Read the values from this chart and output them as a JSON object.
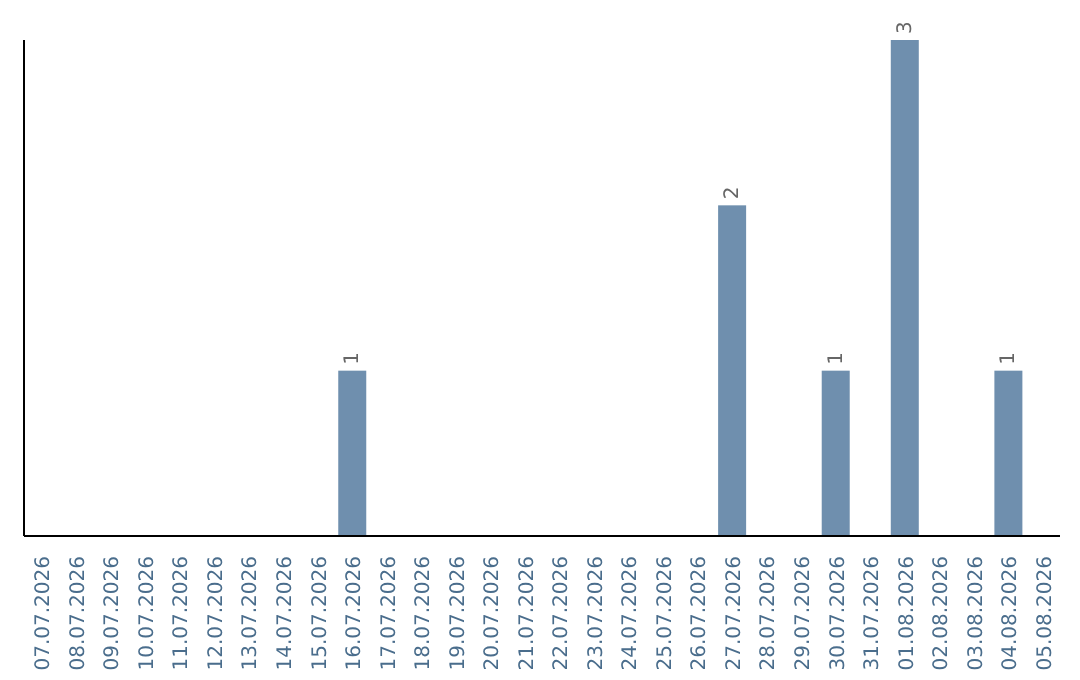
{
  "chart_data": {
    "type": "bar",
    "categories": [
      "07.07.2026",
      "08.07.2026",
      "09.07.2026",
      "10.07.2026",
      "11.07.2026",
      "12.07.2026",
      "13.07.2026",
      "14.07.2026",
      "15.07.2026",
      "16.07.2026",
      "17.07.2026",
      "18.07.2026",
      "19.07.2026",
      "20.07.2026",
      "21.07.2026",
      "22.07.2026",
      "23.07.2026",
      "24.07.2026",
      "25.07.2026",
      "26.07.2026",
      "27.07.2026",
      "28.07.2026",
      "29.07.2026",
      "30.07.2026",
      "31.07.2026",
      "01.08.2026",
      "02.08.2026",
      "03.08.2026",
      "04.08.2026",
      "05.08.2026"
    ],
    "values": [
      0,
      0,
      0,
      0,
      0,
      0,
      0,
      0,
      0,
      1,
      0,
      0,
      0,
      0,
      0,
      0,
      0,
      0,
      0,
      0,
      2,
      0,
      0,
      1,
      0,
      3,
      0,
      0,
      1,
      0
    ],
    "value_labels": [
      null,
      null,
      null,
      null,
      null,
      null,
      null,
      null,
      null,
      "1",
      null,
      null,
      null,
      null,
      null,
      null,
      null,
      null,
      null,
      null,
      "2",
      null,
      null,
      "1",
      null,
      "3",
      null,
      null,
      "1",
      null
    ],
    "color": "#6f8fae",
    "tick_labels": "x"
  }
}
